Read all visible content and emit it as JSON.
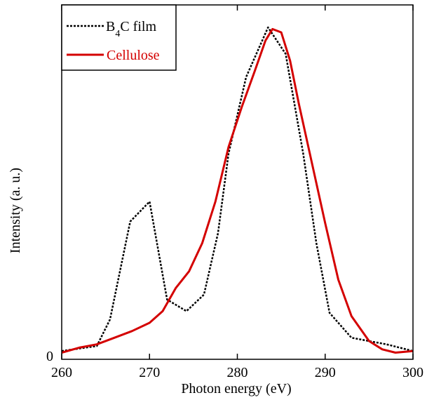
{
  "chart_data": {
    "type": "line",
    "xlabel": "Photon energy (eV)",
    "ylabel": "Intensity (a. u.)",
    "xlim": [
      260,
      300
    ],
    "ylim": [
      0,
      1
    ],
    "x_ticks": [
      260,
      270,
      280,
      290,
      300
    ],
    "x_tick_labels": [
      "260",
      "270",
      "280",
      "290",
      "300"
    ],
    "y_ticks": [
      0
    ],
    "y_tick_labels": [
      "0"
    ],
    "legend_position": "top-left",
    "grid": false,
    "series": [
      {
        "name": "B4C film",
        "legend_main": "B",
        "legend_sub": "4",
        "legend_rest": "C film",
        "color": "#000000",
        "style": "dotted",
        "x": [
          260,
          264,
          265.5,
          267.8,
          270,
          272,
          274.2,
          276.2,
          277.8,
          279,
          281,
          283.5,
          285.5,
          287.5,
          289,
          290.5,
          293,
          297,
          300
        ],
        "y": [
          0.025,
          0.04,
          0.12,
          0.415,
          0.475,
          0.18,
          0.145,
          0.195,
          0.38,
          0.62,
          0.85,
          1.0,
          0.92,
          0.62,
          0.35,
          0.14,
          0.065,
          0.045,
          0.025
        ]
      },
      {
        "name": "Cellulose",
        "color": "#d40000",
        "style": "solid",
        "x": [
          260,
          262,
          264,
          266,
          268,
          270,
          271.5,
          273,
          274.5,
          276,
          277.5,
          279,
          280.5,
          282,
          283.2,
          284,
          285,
          286,
          287,
          288.5,
          290,
          291.5,
          293,
          295,
          296.5,
          298,
          300
        ],
        "y": [
          0.02,
          0.035,
          0.045,
          0.065,
          0.085,
          0.11,
          0.145,
          0.215,
          0.265,
          0.35,
          0.475,
          0.64,
          0.76,
          0.87,
          0.96,
          0.995,
          0.985,
          0.9,
          0.77,
          0.59,
          0.41,
          0.24,
          0.13,
          0.055,
          0.03,
          0.02,
          0.025
        ]
      }
    ]
  }
}
